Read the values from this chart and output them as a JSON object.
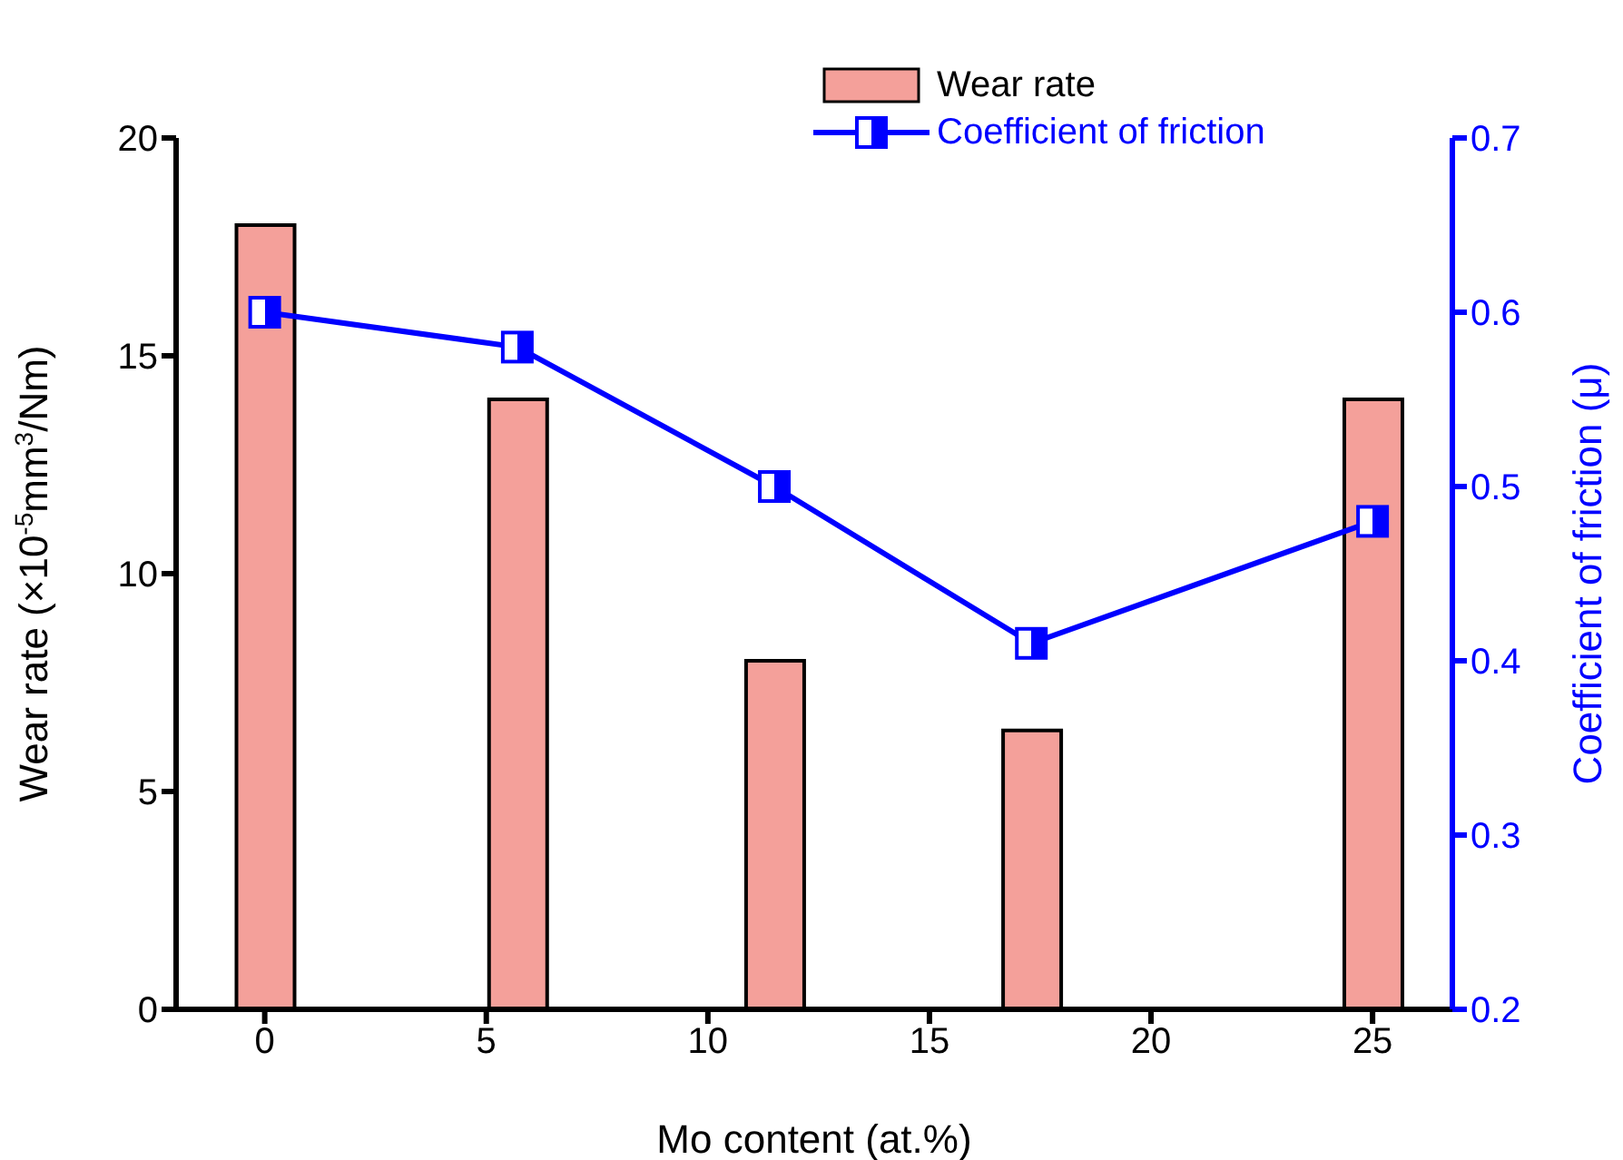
{
  "chart_data": {
    "type": "bar",
    "xlabel": "Mo content (at.%)",
    "ylabel": "Wear rate (×10$^{-5}$mm$^{3}$/Nm)",
    "y2label": "Coefficient of friction (μ)",
    "x": [
      0,
      5.7,
      11.5,
      17.3,
      25
    ],
    "xlim": [
      -2,
      26.8
    ],
    "xticks": [
      0,
      5,
      10,
      15,
      20,
      25
    ],
    "ylim": [
      0,
      20
    ],
    "yticks": [
      0,
      5,
      10,
      15,
      20
    ],
    "y2lim": [
      0.2,
      0.7
    ],
    "y2ticks": [
      0.2,
      0.3,
      0.4,
      0.5,
      0.6,
      0.7
    ],
    "series": [
      {
        "name": "Wear rate",
        "color": "#f4a09a",
        "values": [
          18,
          14,
          8,
          6.4,
          14
        ]
      },
      {
        "name": "Coefficient of friction",
        "type": "line",
        "axis": "y2",
        "color": "#0000ff",
        "marker": "square",
        "values": [
          0.6,
          0.58,
          0.5,
          0.41,
          0.48
        ]
      }
    ],
    "legend": "top"
  }
}
